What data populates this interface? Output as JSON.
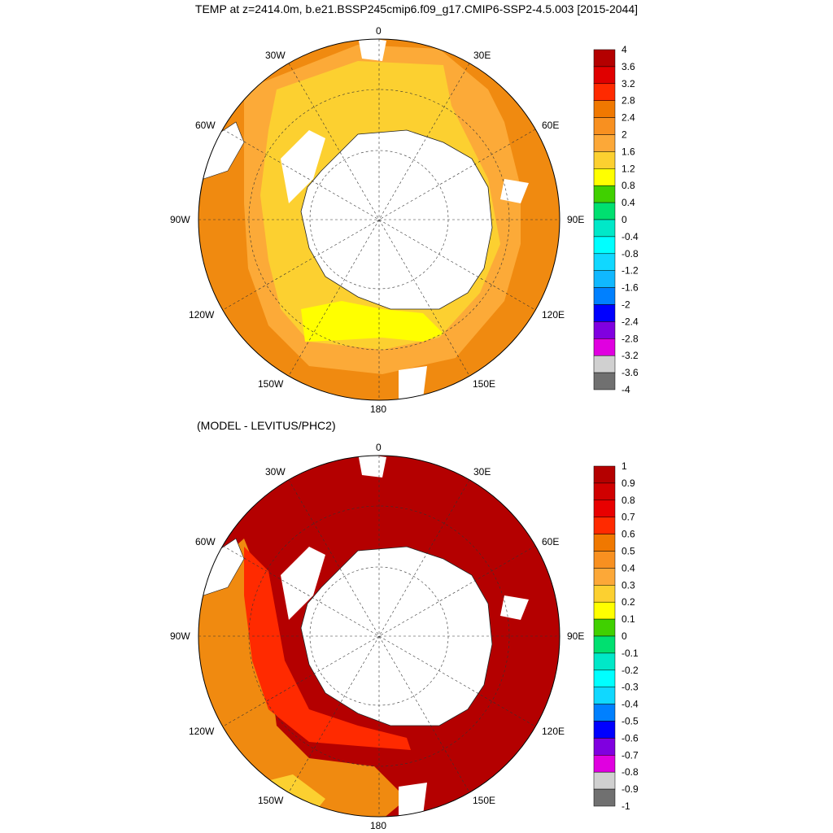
{
  "title": "TEMP at z=2414.0m, b.e21.BSSP245cmip6.f09_g17.CMIP6-SSP2-4.5.003 [2015-2044]",
  "subtitle": "(MODEL - LEVITUS/PHC2)",
  "longitude_labels": {
    "top": "0",
    "bottom": "180",
    "left": "90W",
    "right": "90E",
    "upper_left": "30W",
    "upper_right": "30E",
    "mid_left_upper": "60W",
    "mid_right_upper": "60E",
    "mid_left_lower": "120W",
    "mid_right_lower": "120E",
    "lower_left": "150W",
    "lower_right": "150E"
  },
  "colorbar_top": {
    "labels": [
      "4",
      "3.6",
      "3.2",
      "2.8",
      "2.4",
      "2",
      "1.6",
      "1.2",
      "0.8",
      "0.4",
      "0",
      "-0.4",
      "-0.8",
      "-1.2",
      "-1.6",
      "-2",
      "-2.4",
      "-2.8",
      "-3.2",
      "-3.6",
      "-4"
    ],
    "colors": [
      "#b40000",
      "#e00000",
      "#ff2a00",
      "#f07800",
      "#f89020",
      "#fca838",
      "#fcd030",
      "#ffff00",
      "#40d000",
      "#00e070",
      "#00e8c8",
      "#00ffff",
      "#10d8ff",
      "#10b8ff",
      "#0080ff",
      "#0000ff",
      "#8000e0",
      "#e000e0",
      "#d0d0d0",
      "#707070"
    ]
  },
  "colorbar_bottom": {
    "labels": [
      "1",
      "0.9",
      "0.8",
      "0.7",
      "0.6",
      "0.5",
      "0.4",
      "0.3",
      "0.2",
      "0.1",
      "0",
      "-0.1",
      "-0.2",
      "-0.3",
      "-0.4",
      "-0.5",
      "-0.6",
      "-0.7",
      "-0.8",
      "-0.9",
      "-1"
    ],
    "colors": [
      "#b40000",
      "#d00000",
      "#e80000",
      "#ff2a00",
      "#f07800",
      "#f89020",
      "#fca838",
      "#fcd030",
      "#ffff00",
      "#40d000",
      "#00e070",
      "#00e8c8",
      "#00ffff",
      "#10d8ff",
      "#0080ff",
      "#0000ff",
      "#8000e0",
      "#e000e0",
      "#d0d0d0",
      "#707070"
    ]
  },
  "map_colors": {
    "top_outer": "#f08a10",
    "top_mid": "#fcaa38",
    "top_inner": "#fcd030",
    "top_core": "#ffff00",
    "bottom_main": "#b40000",
    "bottom_red": "#ff2a00",
    "bottom_orange": "#f08a10",
    "bottom_yellow": "#fcd030",
    "land": "#ffffff"
  }
}
